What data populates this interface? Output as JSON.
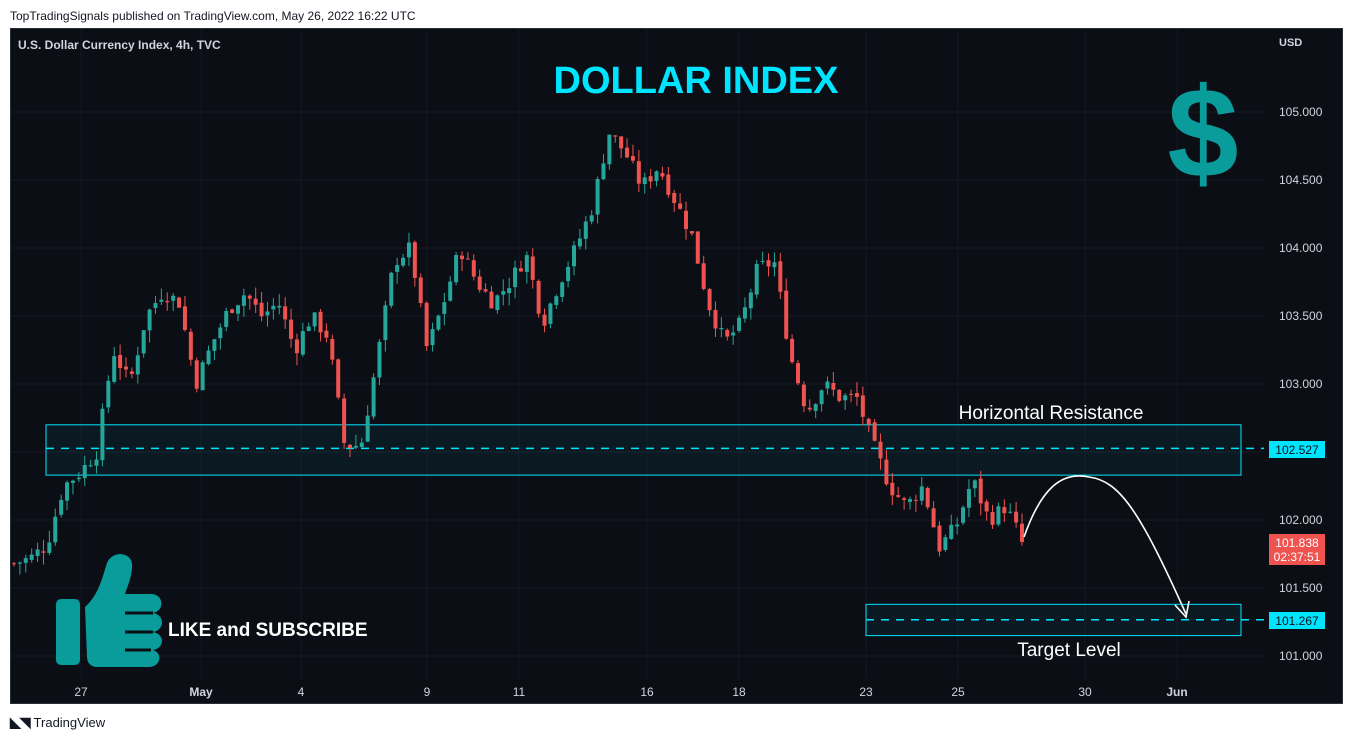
{
  "header": {
    "published": "TopTradingSignals published on TradingView.com, May 26, 2022 16:22 UTC"
  },
  "chart_header": {
    "symbol_title": "U.S. Dollar Currency Index, 4h, TVC",
    "currency": "USD"
  },
  "overlay": {
    "big_title": "DOLLAR INDEX",
    "dollar_symbol": "$",
    "like_text": "LIKE and SUBSCRIBE",
    "resistance_label": "Horizontal Resistance",
    "target_label": "Target Level",
    "accent_color": "#00e5ff",
    "logo_color": "#0a9b9b"
  },
  "price_badges": {
    "resistance": "102.527",
    "current": "101.838",
    "countdown": "02:37:51",
    "target": "101.267"
  },
  "footer": {
    "brand": "TradingView"
  },
  "chart_data": {
    "type": "candlestick",
    "timeframe": "4h",
    "y_axis_ticks": [
      "105.000",
      "104.500",
      "104.000",
      "103.500",
      "103.000",
      "102.500",
      "102.000",
      "101.500",
      "101.000"
    ],
    "x_axis_ticks": [
      "27",
      "May",
      "4",
      "9",
      "11",
      "16",
      "18",
      "23",
      "25",
      "30",
      "Jun"
    ],
    "ylim": [
      100.8,
      105.35
    ],
    "up_color": "#26a69a",
    "down_color": "#ef5350",
    "zones": [
      {
        "name": "resistance",
        "from": 102.33,
        "to": 102.7,
        "level": 102.527
      },
      {
        "name": "target",
        "from": 101.15,
        "to": 101.38,
        "level": 101.267
      }
    ],
    "anchors": [
      101.68,
      101.72,
      101.82,
      102.25,
      102.35,
      102.5,
      103.25,
      103.0,
      103.5,
      103.68,
      103.6,
      103.0,
      103.3,
      103.55,
      103.67,
      103.5,
      103.6,
      103.25,
      103.5,
      103.35,
      102.55,
      102.55,
      103.2,
      103.9,
      104.0,
      103.25,
      103.6,
      104.0,
      103.75,
      103.6,
      103.75,
      103.95,
      103.45,
      103.75,
      104.0,
      104.3,
      104.85,
      104.7,
      104.45,
      104.6,
      104.35,
      104.1,
      103.6,
      103.3,
      103.45,
      103.85,
      103.9,
      103.2,
      102.8,
      103.0,
      102.9,
      102.9,
      102.55,
      102.25,
      102.1,
      102.25,
      101.8,
      101.95,
      102.3,
      102.0,
      102.1,
      101.85
    ],
    "candles_count": 172,
    "last_price": 101.838
  }
}
